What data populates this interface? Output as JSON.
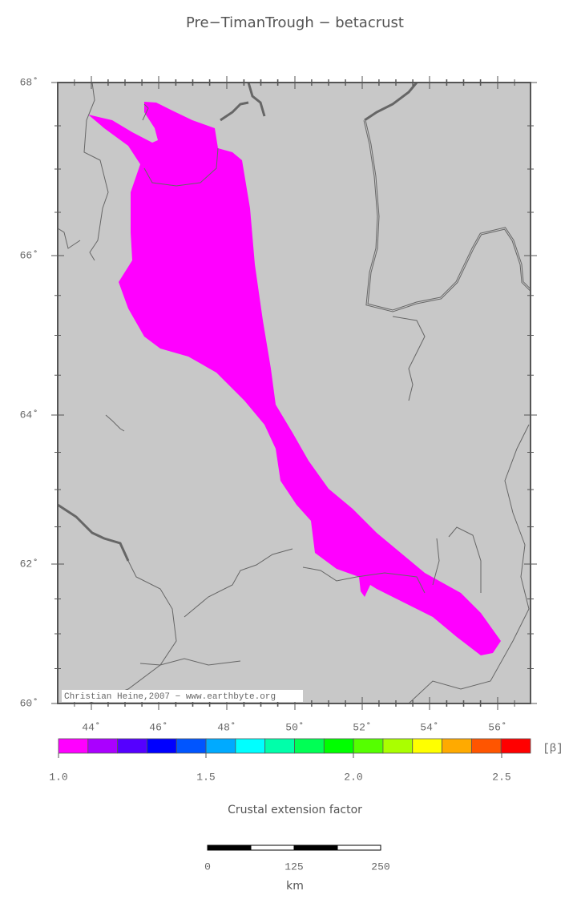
{
  "map": {
    "title": "Pre−TimanTrough − betacrust",
    "lat_labels": [
      "68˚",
      "66˚",
      "64˚",
      "62˚",
      "60˚"
    ],
    "lon_labels": [
      "44˚",
      "46˚",
      "48˚",
      "50˚",
      "52˚",
      "54˚",
      "56˚"
    ],
    "credit": "Christian Heine,2007 − www.earthbyte.org",
    "fill_color": "#ff00ff"
  },
  "colorbar": {
    "colors": [
      "#ff00ff",
      "#aa00ff",
      "#5500ff",
      "#0000ff",
      "#0055ff",
      "#00aaff",
      "#00ffff",
      "#00ffaa",
      "#00ff55",
      "#00ff00",
      "#55ff00",
      "#aaff00",
      "#ffff00",
      "#ffaa00",
      "#ff5500",
      "#ff0000"
    ],
    "labels": [
      "1.0",
      "1.5",
      "2.0",
      "2.5"
    ],
    "unit": "[β]",
    "title": "Crustal extension factor"
  },
  "scalebar": {
    "labels": [
      "0",
      "125",
      "250"
    ],
    "unit": "km"
  }
}
